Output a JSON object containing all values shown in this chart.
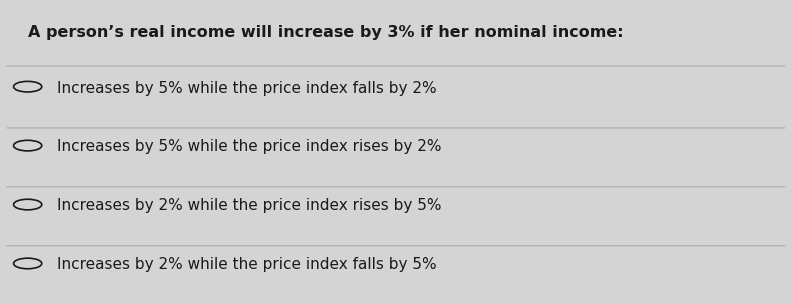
{
  "question": "A person’s real income will increase by 3% if her nominal income:",
  "options": [
    "Increases by 5% while the price index falls by 2%",
    "Increases by 5% while the price index rises by 2%",
    "Increases by 2% while the price index rises by 5%",
    "Increases by 2% while the price index falls by 5%"
  ],
  "bg_color": "#d4d4d4",
  "text_color": "#1a1a1a",
  "question_fontsize": 11.5,
  "option_fontsize": 11.0,
  "divider_color": "#aaaaaa"
}
